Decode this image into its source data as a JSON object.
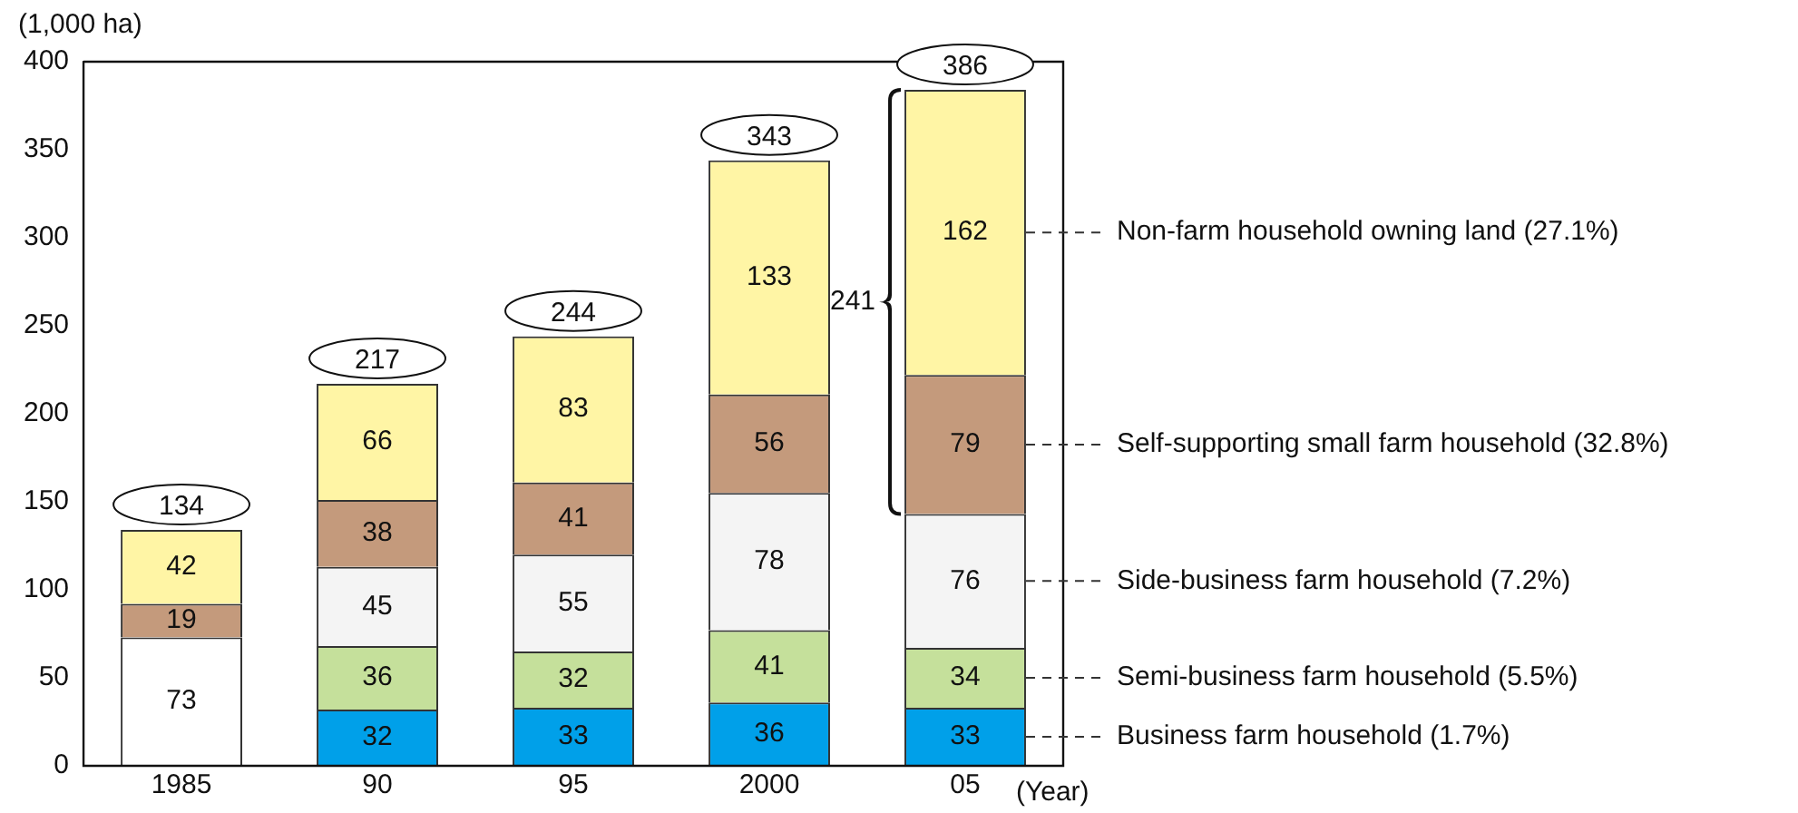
{
  "chart_data": {
    "type": "bar",
    "stacked": true,
    "xlabel": "(Year)",
    "ylabel": "(1,000 ha)",
    "categories": [
      "1985",
      "90",
      "95",
      "2000",
      "05"
    ],
    "series": [
      {
        "color": "#ffffff",
        "values": [
          73,
          null,
          null,
          null,
          null
        ]
      },
      {
        "name": "Business farm household (1.7%)",
        "color": "#00a0e9",
        "values": [
          null,
          32,
          33,
          36,
          33
        ]
      },
      {
        "name": "Semi-business farm household (5.5%)",
        "color": "#c5e09b",
        "values": [
          null,
          36,
          32,
          41,
          34
        ]
      },
      {
        "name": "Side-business farm household (7.2%)",
        "color": "#f4f4f4",
        "values": [
          null,
          45,
          55,
          78,
          76
        ]
      },
      {
        "name": "Self-supporting small farm household (32.8%)",
        "color": "#c49a7c",
        "values": [
          19,
          38,
          41,
          56,
          79
        ]
      },
      {
        "name": "Non-farm household owning land (27.1%)",
        "color": "#fff5a5",
        "values": [
          42,
          66,
          83,
          133,
          162
        ]
      }
    ],
    "totals": [
      "134",
      "217",
      "244",
      "343",
      "386"
    ],
    "annotations": [
      "241"
    ],
    "data_labels": true,
    "ylim": [
      0,
      400
    ],
    "yticks": [
      0,
      50,
      100,
      150,
      200,
      250,
      300,
      350,
      400
    ],
    "grid": false
  }
}
